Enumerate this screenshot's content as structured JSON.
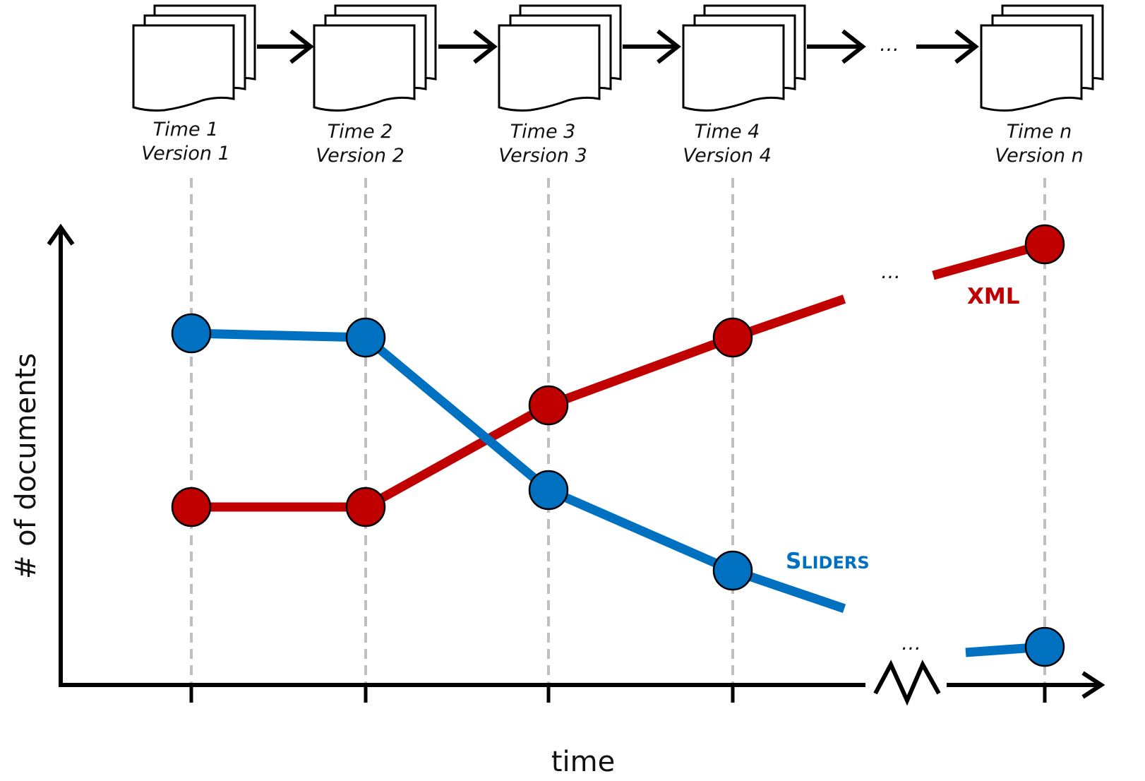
{
  "versions": [
    {
      "time": "Time 1",
      "version": "Version 1"
    },
    {
      "time": "Time 2",
      "version": "Version 2"
    },
    {
      "time": "Time 3",
      "version": "Version 3"
    },
    {
      "time": "Time 4",
      "version": "Version 4"
    },
    {
      "time": "Time n",
      "version": "Version n"
    }
  ],
  "ellipsis": "…",
  "chart_data": {
    "type": "line",
    "title": "",
    "xlabel": "time",
    "ylabel": "# of documents",
    "categories": [
      "Time 1",
      "Time 2",
      "Time 3",
      "Time 4",
      "Time n"
    ],
    "x_axis_break": "between Time 4 and Time n",
    "grid": "dashed vertical lines at each version",
    "ylim": [
      0,
      100
    ],
    "series": [
      {
        "name": "XML",
        "label_main": "XML",
        "label_small": "",
        "color": "#C00000",
        "values": [
          37,
          37,
          61,
          77,
          99
        ]
      },
      {
        "name": "Sliders",
        "label_main": "S",
        "label_small": "LIDERS",
        "color": "#0070C0",
        "values": [
          78,
          77,
          41,
          22,
          4
        ]
      }
    ]
  }
}
